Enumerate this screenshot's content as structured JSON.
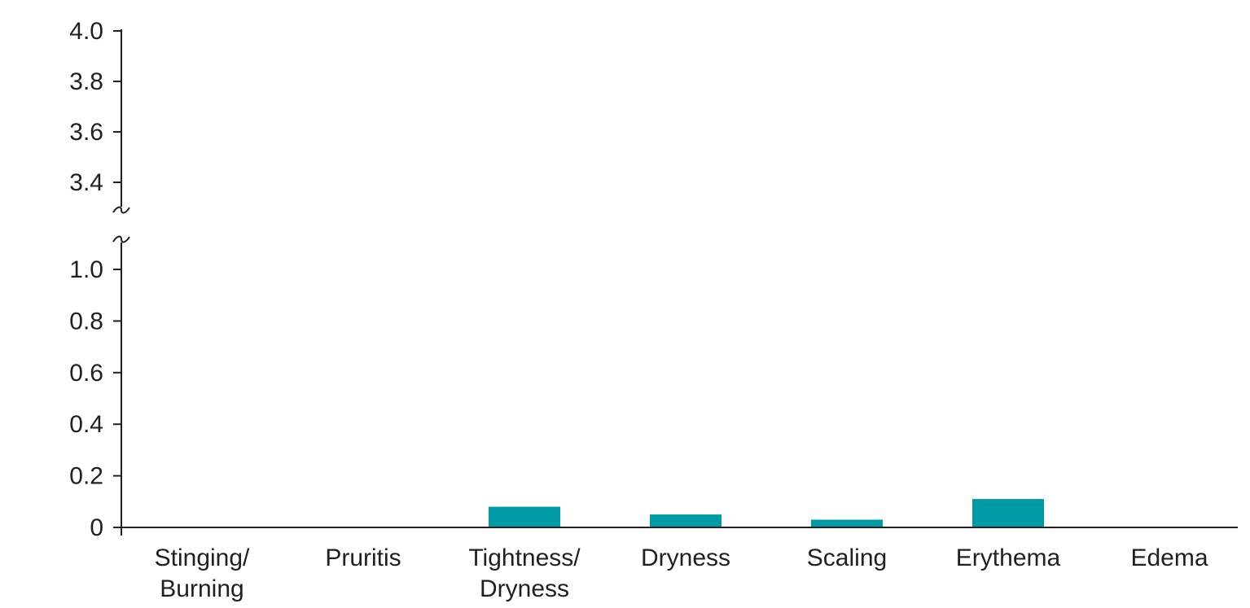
{
  "chart_data": {
    "type": "bar",
    "categories": [
      [
        "Stinging/",
        "Burning"
      ],
      [
        "Pruritis"
      ],
      [
        "Tightness/",
        "Dryness"
      ],
      [
        "Dryness"
      ],
      [
        "Scaling"
      ],
      [
        "Erythema"
      ],
      [
        "Edema"
      ]
    ],
    "values": [
      0,
      0,
      0.08,
      0.05,
      0.03,
      0.11,
      0
    ],
    "title": "",
    "xlabel": "",
    "ylabel": "",
    "y_segments": [
      {
        "range": [
          0,
          1.0
        ],
        "ticks": [
          "0",
          "0.2",
          "0.4",
          "0.6",
          "0.8",
          "1.0"
        ],
        "tick_values": [
          0,
          0.2,
          0.4,
          0.6,
          0.8,
          1.0
        ]
      },
      {
        "range": [
          3.4,
          4.0
        ],
        "ticks": [
          "3.4",
          "3.6",
          "3.8",
          "4.0"
        ],
        "tick_values": [
          3.4,
          3.6,
          3.8,
          4.0
        ]
      }
    ],
    "axis_break": true,
    "grid": false,
    "legend": "none",
    "bar_color": "#009aa6",
    "axis_color": "#231f20"
  }
}
